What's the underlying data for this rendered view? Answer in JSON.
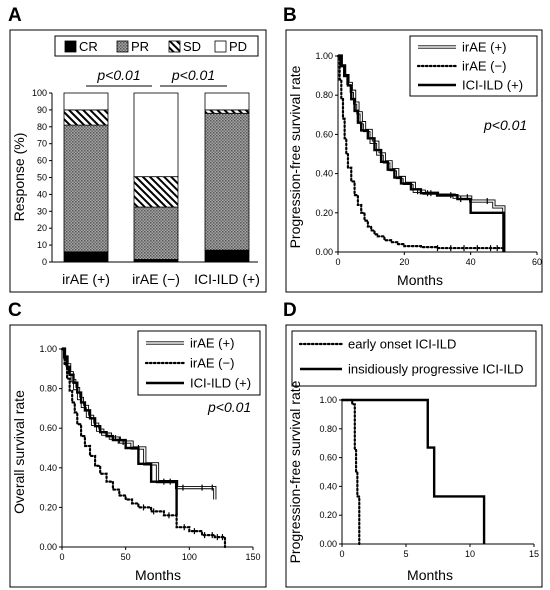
{
  "panels": [
    {
      "letter": "A"
    },
    {
      "letter": "B"
    },
    {
      "letter": "C"
    },
    {
      "letter": "D"
    }
  ],
  "chart_data": [
    {
      "panel": "A",
      "type": "bar",
      "stacked": true,
      "ylabel": "Response (%)",
      "xlabel": "",
      "ylim": [
        0,
        100
      ],
      "yticks": [
        0,
        10,
        20,
        30,
        40,
        50,
        60,
        70,
        80,
        90,
        100
      ],
      "categories": [
        "irAE (+)",
        "irAE (−)",
        "ICI-ILD (+)"
      ],
      "series": [
        {
          "name": "CR",
          "color": "#000000",
          "pattern": "solid",
          "values": [
            6,
            1.5,
            7
          ]
        },
        {
          "name": "PR",
          "color": "#8c8c8c",
          "pattern": "dots",
          "values": [
            75,
            31,
            81
          ]
        },
        {
          "name": "SD",
          "color": "#ffffff",
          "pattern": "hatch",
          "values": [
            9,
            18,
            2
          ]
        },
        {
          "name": "PD",
          "color": "#ffffff",
          "pattern": "none",
          "values": [
            10,
            49.5,
            10
          ]
        }
      ],
      "comparisons": [
        {
          "from": 0,
          "to": 1,
          "label": "p<0.01"
        },
        {
          "from": 1,
          "to": 2,
          "label": "p<0.01"
        }
      ],
      "legend": "top"
    },
    {
      "panel": "B",
      "type": "line",
      "step": true,
      "ylabel": "Progression-free survival rate",
      "xlabel": "Months",
      "xlim": [
        0,
        60
      ],
      "ylim": [
        0,
        1
      ],
      "xticks": [
        0,
        20,
        40,
        60
      ],
      "yticks": [
        0,
        0.2,
        0.4,
        0.6,
        0.8,
        1.0
      ],
      "ytick_labels": [
        "0.00",
        "0.20",
        "0.40",
        "0.60",
        "0.80",
        "1.00"
      ],
      "annotation": "p<0.01",
      "legend": "top-right",
      "series": [
        {
          "name": "irAE (+)",
          "style": "double",
          "x": [
            0,
            1,
            2,
            3,
            4,
            5,
            6,
            7,
            8,
            10,
            12,
            14,
            16,
            18,
            20,
            23,
            26,
            30,
            35,
            40,
            47,
            50
          ],
          "y": [
            1,
            0.95,
            0.9,
            0.86,
            0.82,
            0.76,
            0.71,
            0.66,
            0.62,
            0.56,
            0.5,
            0.46,
            0.42,
            0.38,
            0.35,
            0.31,
            0.3,
            0.29,
            0.28,
            0.26,
            0.23,
            0
          ],
          "censor_x": [
            24,
            27,
            34,
            39,
            45
          ]
        },
        {
          "name": "irAE (−)",
          "style": "dotted",
          "x": [
            0,
            0.5,
            1,
            1.5,
            2,
            2.5,
            3,
            4,
            5,
            6,
            7,
            8,
            9,
            10,
            11,
            12,
            14,
            16,
            18,
            20,
            25,
            30,
            40,
            50
          ],
          "y": [
            1,
            0.88,
            0.78,
            0.68,
            0.58,
            0.5,
            0.43,
            0.36,
            0.29,
            0.24,
            0.2,
            0.16,
            0.13,
            0.11,
            0.09,
            0.08,
            0.06,
            0.05,
            0.04,
            0.03,
            0.025,
            0.02,
            0.02,
            0.02
          ],
          "censor_x": [
            30,
            34,
            38,
            42,
            46,
            48
          ]
        },
        {
          "name": "ICI-ILD (+)",
          "style": "thick",
          "x": [
            0,
            1,
            2,
            3,
            4,
            5,
            6,
            7,
            9,
            11,
            13,
            15,
            17,
            19,
            22,
            25,
            30,
            36,
            40,
            47,
            50
          ],
          "y": [
            1,
            0.95,
            0.9,
            0.85,
            0.78,
            0.72,
            0.66,
            0.62,
            0.58,
            0.52,
            0.46,
            0.42,
            0.38,
            0.35,
            0.32,
            0.3,
            0.29,
            0.27,
            0.2,
            0.2,
            0
          ],
          "censor_x": [
            28,
            37
          ]
        }
      ]
    },
    {
      "panel": "C",
      "type": "line",
      "step": true,
      "ylabel": "Overall survival rate",
      "xlabel": "Months",
      "xlim": [
        0,
        150
      ],
      "ylim": [
        0,
        1
      ],
      "xticks": [
        0,
        50,
        100,
        150
      ],
      "yticks": [
        0,
        0.2,
        0.4,
        0.6,
        0.8,
        1.0
      ],
      "ytick_labels": [
        "0.00",
        "0.20",
        "0.40",
        "0.60",
        "0.80",
        "1.00"
      ],
      "annotation": "p<0.01",
      "legend": "top-right",
      "series": [
        {
          "name": "irAE (+)",
          "style": "double",
          "x": [
            0,
            2,
            4,
            6,
            8,
            10,
            13,
            16,
            20,
            24,
            28,
            32,
            38,
            45,
            55,
            65,
            75,
            90,
            120
          ],
          "y": [
            1,
            0.96,
            0.92,
            0.88,
            0.84,
            0.8,
            0.75,
            0.71,
            0.66,
            0.62,
            0.59,
            0.57,
            0.55,
            0.53,
            0.5,
            0.42,
            0.33,
            0.3,
            0.24
          ],
          "censor_x": [
            30,
            35,
            42,
            48,
            60,
            80,
            95,
            110,
            118
          ]
        },
        {
          "name": "irAE (−)",
          "style": "dotted",
          "x": [
            0,
            2,
            4,
            6,
            8,
            10,
            12,
            15,
            18,
            22,
            26,
            30,
            35,
            40,
            45,
            50,
            55,
            60,
            70,
            80,
            90,
            100,
            110,
            120,
            128
          ],
          "y": [
            1,
            0.92,
            0.85,
            0.79,
            0.73,
            0.68,
            0.62,
            0.56,
            0.51,
            0.46,
            0.41,
            0.37,
            0.33,
            0.29,
            0.26,
            0.24,
            0.22,
            0.2,
            0.18,
            0.16,
            0.1,
            0.08,
            0.06,
            0.05,
            0
          ],
          "censor_x": [
            64,
            72,
            84,
            96,
            104,
            112,
            118,
            122,
            126
          ]
        },
        {
          "name": "ICI-ILD (+)",
          "style": "thick",
          "x": [
            0,
            2,
            4,
            6,
            9,
            12,
            15,
            18,
            22,
            26,
            30,
            35,
            40,
            50,
            60,
            70,
            80,
            90
          ],
          "y": [
            1,
            0.96,
            0.91,
            0.87,
            0.83,
            0.78,
            0.73,
            0.69,
            0.65,
            0.61,
            0.58,
            0.56,
            0.54,
            0.5,
            0.42,
            0.33,
            0.33,
            0.16
          ],
          "censor_x": [
            45,
            85
          ]
        }
      ]
    },
    {
      "panel": "D",
      "type": "line",
      "step": true,
      "ylabel": "Progression-free survival rate",
      "xlabel": "Months",
      "xlim": [
        0,
        15
      ],
      "ylim": [
        0,
        1
      ],
      "xticks": [
        0,
        5,
        10,
        15
      ],
      "yticks": [
        0,
        0.2,
        0.4,
        0.6,
        0.8,
        1.0
      ],
      "ytick_labels": [
        "0.00",
        "0.20",
        "0.40",
        "0.60",
        "0.80",
        "1.00"
      ],
      "legend": "top",
      "series": [
        {
          "name": "early onset ICI-ILD",
          "style": "dotted",
          "x": [
            0,
            0.8,
            1.0,
            1.1,
            1.2,
            1.35
          ],
          "y": [
            1,
            0.97,
            0.66,
            0.5,
            0.33,
            0
          ],
          "censor_x": []
        },
        {
          "name": "insidiously progressive ICI-ILD",
          "style": "thick",
          "x": [
            0,
            6.7,
            7.2,
            11.1
          ],
          "y": [
            1,
            0.67,
            0.33,
            0
          ],
          "censor_x": []
        }
      ]
    }
  ]
}
